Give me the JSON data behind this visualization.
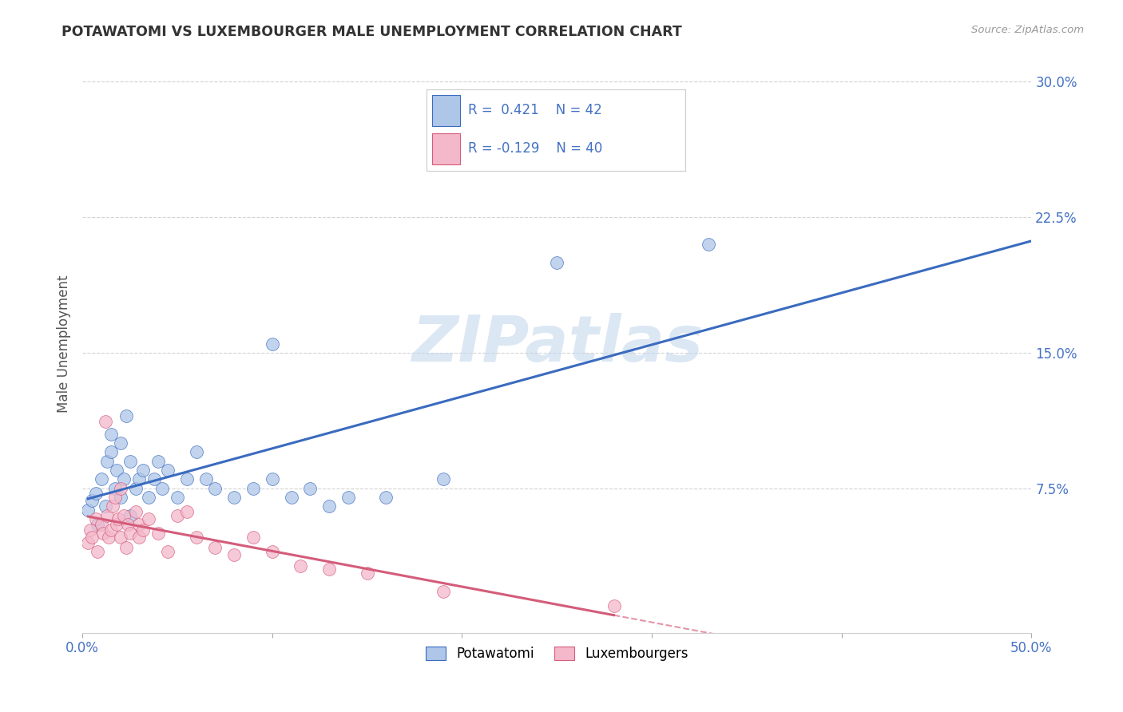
{
  "title": "POTAWATOMI VS LUXEMBOURGER MALE UNEMPLOYMENT CORRELATION CHART",
  "source": "Source: ZipAtlas.com",
  "ylabel": "Male Unemployment",
  "xlim": [
    0.0,
    0.5
  ],
  "ylim": [
    -0.005,
    0.315
  ],
  "ytick_positions": [
    0.075,
    0.15,
    0.225,
    0.3
  ],
  "ytick_labels": [
    "7.5%",
    "15.0%",
    "22.5%",
    "30.0%"
  ],
  "legend_r_blue": "0.421",
  "legend_n_blue": "42",
  "legend_r_pink": "-0.129",
  "legend_n_pink": "40",
  "blue_scatter": [
    [
      0.003,
      0.063
    ],
    [
      0.005,
      0.068
    ],
    [
      0.007,
      0.072
    ],
    [
      0.008,
      0.055
    ],
    [
      0.01,
      0.08
    ],
    [
      0.012,
      0.065
    ],
    [
      0.013,
      0.09
    ],
    [
      0.015,
      0.095
    ],
    [
      0.015,
      0.105
    ],
    [
      0.017,
      0.075
    ],
    [
      0.018,
      0.085
    ],
    [
      0.02,
      0.07
    ],
    [
      0.02,
      0.1
    ],
    [
      0.022,
      0.08
    ],
    [
      0.023,
      0.115
    ],
    [
      0.025,
      0.09
    ],
    [
      0.025,
      0.06
    ],
    [
      0.028,
      0.075
    ],
    [
      0.03,
      0.08
    ],
    [
      0.032,
      0.085
    ],
    [
      0.035,
      0.07
    ],
    [
      0.038,
      0.08
    ],
    [
      0.04,
      0.09
    ],
    [
      0.042,
      0.075
    ],
    [
      0.045,
      0.085
    ],
    [
      0.05,
      0.07
    ],
    [
      0.055,
      0.08
    ],
    [
      0.06,
      0.095
    ],
    [
      0.065,
      0.08
    ],
    [
      0.07,
      0.075
    ],
    [
      0.08,
      0.07
    ],
    [
      0.09,
      0.075
    ],
    [
      0.1,
      0.08
    ],
    [
      0.11,
      0.07
    ],
    [
      0.12,
      0.075
    ],
    [
      0.13,
      0.065
    ],
    [
      0.14,
      0.07
    ],
    [
      0.16,
      0.07
    ],
    [
      0.19,
      0.08
    ],
    [
      0.25,
      0.2
    ],
    [
      0.1,
      0.155
    ],
    [
      0.33,
      0.21
    ]
  ],
  "pink_scatter": [
    [
      0.003,
      0.045
    ],
    [
      0.004,
      0.052
    ],
    [
      0.005,
      0.048
    ],
    [
      0.007,
      0.058
    ],
    [
      0.008,
      0.04
    ],
    [
      0.01,
      0.055
    ],
    [
      0.011,
      0.05
    ],
    [
      0.012,
      0.112
    ],
    [
      0.013,
      0.06
    ],
    [
      0.014,
      0.048
    ],
    [
      0.015,
      0.052
    ],
    [
      0.016,
      0.065
    ],
    [
      0.017,
      0.07
    ],
    [
      0.018,
      0.055
    ],
    [
      0.019,
      0.058
    ],
    [
      0.02,
      0.075
    ],
    [
      0.02,
      0.048
    ],
    [
      0.022,
      0.06
    ],
    [
      0.023,
      0.042
    ],
    [
      0.024,
      0.055
    ],
    [
      0.025,
      0.05
    ],
    [
      0.028,
      0.062
    ],
    [
      0.03,
      0.055
    ],
    [
      0.03,
      0.048
    ],
    [
      0.032,
      0.052
    ],
    [
      0.035,
      0.058
    ],
    [
      0.04,
      0.05
    ],
    [
      0.045,
      0.04
    ],
    [
      0.05,
      0.06
    ],
    [
      0.055,
      0.062
    ],
    [
      0.06,
      0.048
    ],
    [
      0.07,
      0.042
    ],
    [
      0.08,
      0.038
    ],
    [
      0.09,
      0.048
    ],
    [
      0.1,
      0.04
    ],
    [
      0.115,
      0.032
    ],
    [
      0.13,
      0.03
    ],
    [
      0.15,
      0.028
    ],
    [
      0.19,
      0.018
    ],
    [
      0.28,
      0.01
    ]
  ],
  "blue_color": "#aec6e8",
  "pink_color": "#f4b8cb",
  "blue_line_color": "#3a6bbf",
  "pink_line_color": "#d45c7a",
  "title_color": "#333333",
  "axis_label_color": "#555555",
  "tick_color": "#4472c4",
  "grid_color": "#c8c8c8",
  "watermark_color": "#c5d8ee",
  "background_color": "#ffffff"
}
